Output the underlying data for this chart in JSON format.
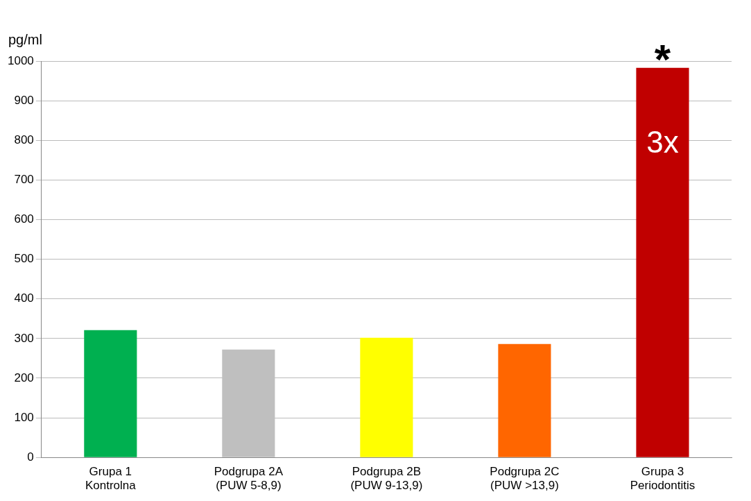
{
  "chart_data": {
    "type": "bar",
    "ylabel": "pg/ml",
    "categories": [
      "Grupa 1\nKontrolna",
      "Podgrupa 2A\n(PUW 5-8,9)",
      "Podgrupa 2B\n(PUW 9-13,9)",
      "Podgrupa 2C\n(PUW >13,9)",
      "Grupa 3\nPeriodontitis"
    ],
    "values": [
      321,
      272,
      302,
      286,
      983
    ],
    "colors": [
      "#00b050",
      "#bfbfbf",
      "#ffff00",
      "#ff6600",
      "#c00000"
    ],
    "ylim": [
      0,
      1000
    ],
    "yticks": [
      0,
      100,
      200,
      300,
      400,
      500,
      600,
      700,
      800,
      900,
      1000
    ],
    "grid": "y",
    "annotations": [
      "3x",
      "*"
    ]
  }
}
